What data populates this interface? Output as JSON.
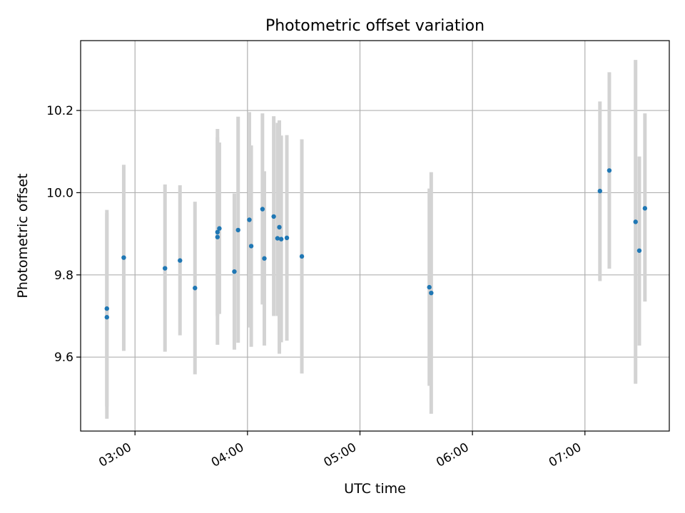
{
  "chart_data": {
    "type": "scatter",
    "title": "Photometric offset variation",
    "xlabel": "UTC time",
    "ylabel": "Photometric offset",
    "x_unit": "UTC time of day",
    "xlim": [
      "02:31",
      "07:45"
    ],
    "ylim": [
      9.42,
      10.37
    ],
    "x_ticks": [
      "03:00",
      "04:00",
      "05:00",
      "06:00",
      "07:00"
    ],
    "y_ticks": [
      "9.6",
      "9.8",
      "10.0",
      "10.2"
    ],
    "grid": true,
    "legend": "none",
    "colors": {
      "points": "#1f77b4",
      "errorbars": "#d3d3d3",
      "grid": "#b0b0b0"
    },
    "points": [
      {
        "x": "02:45",
        "y": 9.697,
        "yerr_low": 9.45,
        "yerr_high": 9.95
      },
      {
        "x": "02:45",
        "y": 9.718,
        "yerr_low": 9.48,
        "yerr_high": 9.958
      },
      {
        "x": "02:54",
        "y": 9.842,
        "yerr_low": 9.615,
        "yerr_high": 10.068
      },
      {
        "x": "03:16",
        "y": 9.816,
        "yerr_low": 9.613,
        "yerr_high": 10.02
      },
      {
        "x": "03:24",
        "y": 9.835,
        "yerr_low": 9.653,
        "yerr_high": 10.018
      },
      {
        "x": "03:32",
        "y": 9.768,
        "yerr_low": 9.558,
        "yerr_high": 9.978
      },
      {
        "x": "03:44",
        "y": 9.892,
        "yerr_low": 9.63,
        "yerr_high": 10.155
      },
      {
        "x": "03:44",
        "y": 9.904,
        "yerr_low": 9.7,
        "yerr_high": 10.135
      },
      {
        "x": "03:45",
        "y": 9.913,
        "yerr_low": 9.705,
        "yerr_high": 10.122
      },
      {
        "x": "03:53",
        "y": 9.808,
        "yerr_low": 9.618,
        "yerr_high": 9.998
      },
      {
        "x": "03:55",
        "y": 9.909,
        "yerr_low": 9.635,
        "yerr_high": 10.185
      },
      {
        "x": "04:01",
        "y": 9.934,
        "yerr_low": 9.672,
        "yerr_high": 10.196
      },
      {
        "x": "04:02",
        "y": 9.87,
        "yerr_low": 9.625,
        "yerr_high": 10.115
      },
      {
        "x": "04:08",
        "y": 9.96,
        "yerr_low": 9.728,
        "yerr_high": 10.193
      },
      {
        "x": "04:09",
        "y": 9.84,
        "yerr_low": 9.628,
        "yerr_high": 10.052
      },
      {
        "x": "04:14",
        "y": 9.942,
        "yerr_low": 9.7,
        "yerr_high": 10.186
      },
      {
        "x": "04:16",
        "y": 9.889,
        "yerr_low": 9.7,
        "yerr_high": 10.17
      },
      {
        "x": "04:17",
        "y": 9.916,
        "yerr_low": 9.608,
        "yerr_high": 10.176
      },
      {
        "x": "04:18",
        "y": 9.887,
        "yerr_low": 9.636,
        "yerr_high": 10.139
      },
      {
        "x": "04:21",
        "y": 9.89,
        "yerr_low": 9.64,
        "yerr_high": 10.14
      },
      {
        "x": "04:29",
        "y": 9.845,
        "yerr_low": 9.56,
        "yerr_high": 10.13
      },
      {
        "x": "05:37",
        "y": 9.77,
        "yerr_low": 9.53,
        "yerr_high": 10.01
      },
      {
        "x": "05:38",
        "y": 9.756,
        "yerr_low": 9.462,
        "yerr_high": 10.05
      },
      {
        "x": "07:08",
        "y": 10.004,
        "yerr_low": 9.785,
        "yerr_high": 10.222
      },
      {
        "x": "07:13",
        "y": 10.054,
        "yerr_low": 9.815,
        "yerr_high": 10.293
      },
      {
        "x": "07:27",
        "y": 9.929,
        "yerr_low": 9.535,
        "yerr_high": 10.323
      },
      {
        "x": "07:29",
        "y": 9.859,
        "yerr_low": 9.628,
        "yerr_high": 10.088
      },
      {
        "x": "07:32",
        "y": 9.962,
        "yerr_low": 9.735,
        "yerr_high": 10.193
      }
    ]
  }
}
